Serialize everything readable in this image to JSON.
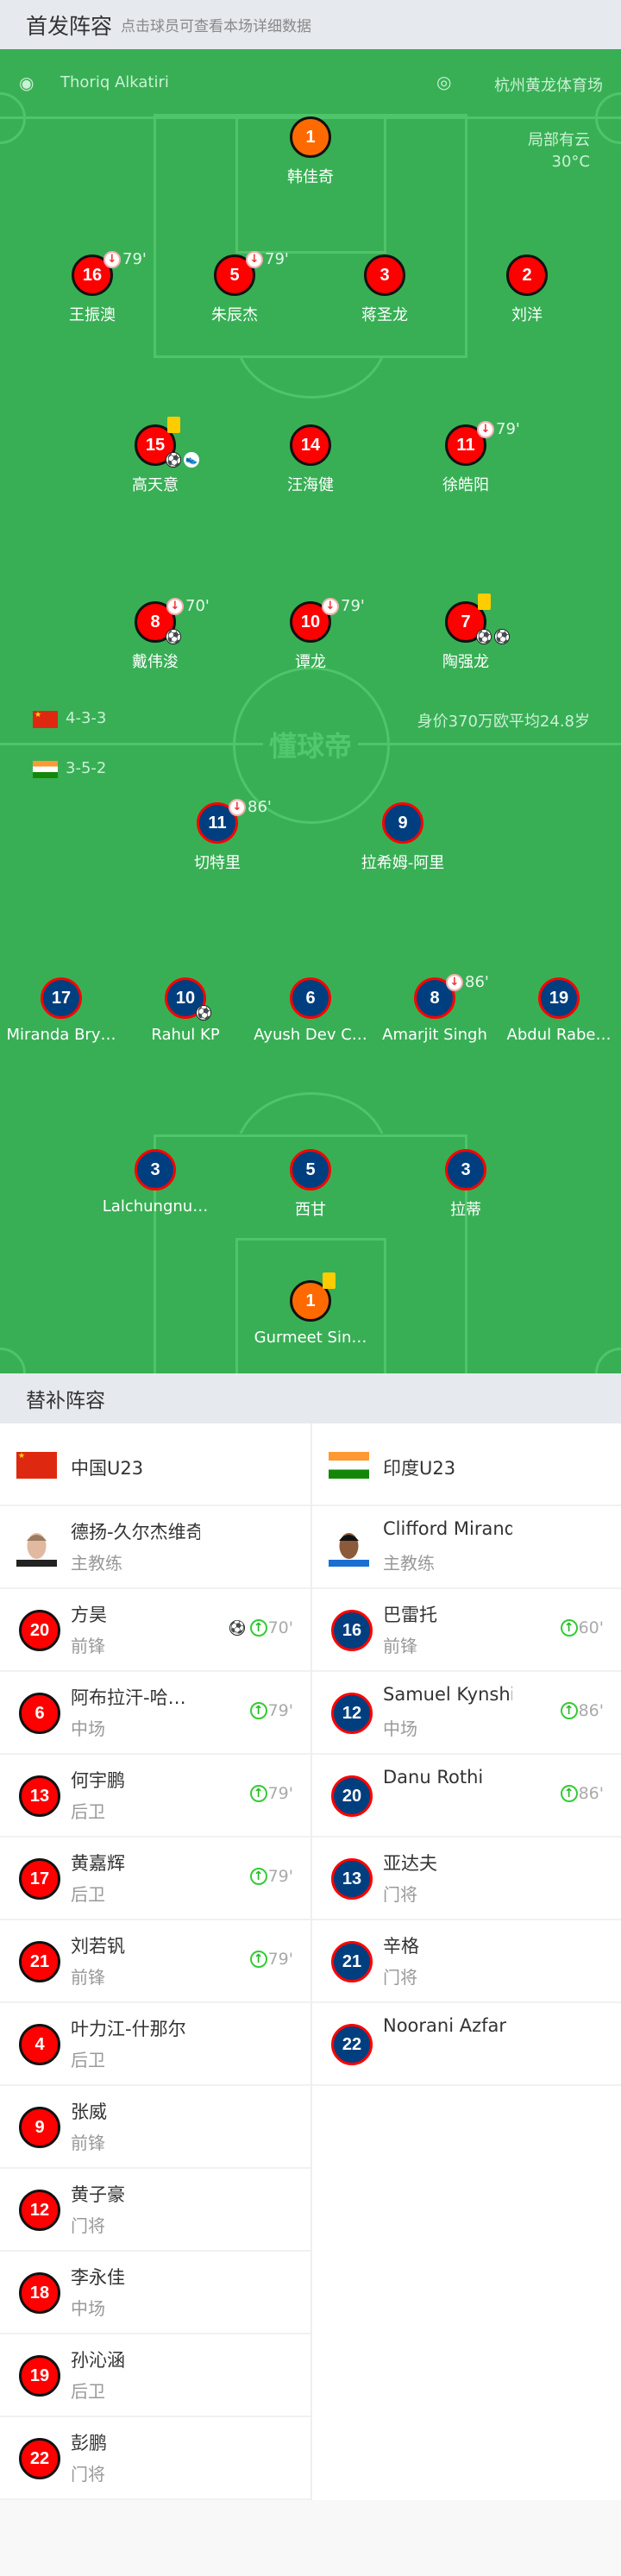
{
  "header": {
    "title": "首发阵容",
    "subtitle": "点击球员可查看本场详细数据"
  },
  "pitch": {
    "referee": "Thoriq Alkatiri",
    "referee_icon": "whistle-icon",
    "stadium": "杭州黄龙体育场",
    "stadium_icon": "stadium-icon",
    "weather": "局部有云",
    "temperature": "30°C",
    "watermark": "懂球帝",
    "home": {
      "formation": "4-3-3",
      "market_value": "身价370万欧",
      "avg_age": "平均24.8岁",
      "color": "#ff0000",
      "gk_color": "#ff6a00",
      "players": [
        {
          "number": "1",
          "name": "韩佳奇",
          "gk": true
        },
        {
          "number": "16",
          "name": "王振澳",
          "sub_off": "79'"
        },
        {
          "number": "5",
          "name": "朱辰杰",
          "sub_off": "79'"
        },
        {
          "number": "3",
          "name": "蒋圣龙"
        },
        {
          "number": "2",
          "name": "刘洋"
        },
        {
          "number": "15",
          "name": "高天意",
          "yellow": true,
          "goals": 1,
          "assists": 1
        },
        {
          "number": "14",
          "name": "汪海健"
        },
        {
          "number": "11",
          "name": "徐皓阳",
          "sub_off": "79'"
        },
        {
          "number": "8",
          "name": "戴伟浚",
          "sub_off": "70'",
          "goals": 1
        },
        {
          "number": "10",
          "name": "谭龙",
          "sub_off": "79'"
        },
        {
          "number": "7",
          "name": "陶强龙",
          "yellow": true,
          "goals": 2
        }
      ]
    },
    "away": {
      "formation": "3-5-2",
      "color": "#003f7f",
      "gk_color": "#ff6a00",
      "players": [
        {
          "number": "11",
          "name": "切特里",
          "sub_off": "86'"
        },
        {
          "number": "9",
          "name": "拉希姆-阿里"
        },
        {
          "number": "17",
          "name": "Miranda Bry…"
        },
        {
          "number": "10",
          "name": "Rahul KP",
          "goals": 1
        },
        {
          "number": "6",
          "name": "Ayush Dev C…"
        },
        {
          "number": "8",
          "name": "Amarjit Singh",
          "sub_off": "86'"
        },
        {
          "number": "19",
          "name": "Abdul Rabe…"
        },
        {
          "number": "3",
          "name": "Lalchungnu…"
        },
        {
          "number": "5",
          "name": "西甘"
        },
        {
          "number": "3",
          "name": "拉蒂"
        },
        {
          "number": "1",
          "name": "Gurmeet Sin…",
          "gk": true,
          "yellow": true
        }
      ]
    }
  },
  "subs": {
    "title": "替补阵容",
    "home": {
      "team": "中国U23",
      "coach": {
        "name": "德扬-久尔杰维奇",
        "role": "主教练"
      },
      "players": [
        {
          "number": "20",
          "name": "方昊",
          "pos": "前锋",
          "goal": true,
          "on": "70'"
        },
        {
          "number": "6",
          "name": "阿布拉汗-哈…",
          "pos": "中场",
          "on": "79'"
        },
        {
          "number": "13",
          "name": "何宇鹏",
          "pos": "后卫",
          "on": "79'"
        },
        {
          "number": "17",
          "name": "黄嘉辉",
          "pos": "后卫",
          "on": "79'"
        },
        {
          "number": "21",
          "name": "刘若钒",
          "pos": "前锋",
          "on": "79'"
        },
        {
          "number": "4",
          "name": "叶力江-什那尔",
          "pos": "后卫"
        },
        {
          "number": "9",
          "name": "张威",
          "pos": "前锋"
        },
        {
          "number": "12",
          "name": "黄子豪",
          "pos": "门将"
        },
        {
          "number": "18",
          "name": "李永佳",
          "pos": "中场"
        },
        {
          "number": "19",
          "name": "孙沁涵",
          "pos": "后卫"
        },
        {
          "number": "22",
          "name": "彭鹏",
          "pos": "门将"
        }
      ]
    },
    "away": {
      "team": "印度U23",
      "coach": {
        "name": "Clifford Miranda",
        "role": "主教练"
      },
      "players": [
        {
          "number": "16",
          "name": "巴雷托",
          "pos": "前锋",
          "on": "60'"
        },
        {
          "number": "12",
          "name": "Samuel Kynshi",
          "pos": "中场",
          "on": "86'"
        },
        {
          "number": "20",
          "name": "Danu Rothi",
          "pos": "",
          "on": "86'"
        },
        {
          "number": "13",
          "name": "亚达夫",
          "pos": "门将"
        },
        {
          "number": "21",
          "name": "辛格",
          "pos": "门将"
        },
        {
          "number": "22",
          "name": "Noorani Azfar",
          "pos": ""
        }
      ]
    }
  }
}
